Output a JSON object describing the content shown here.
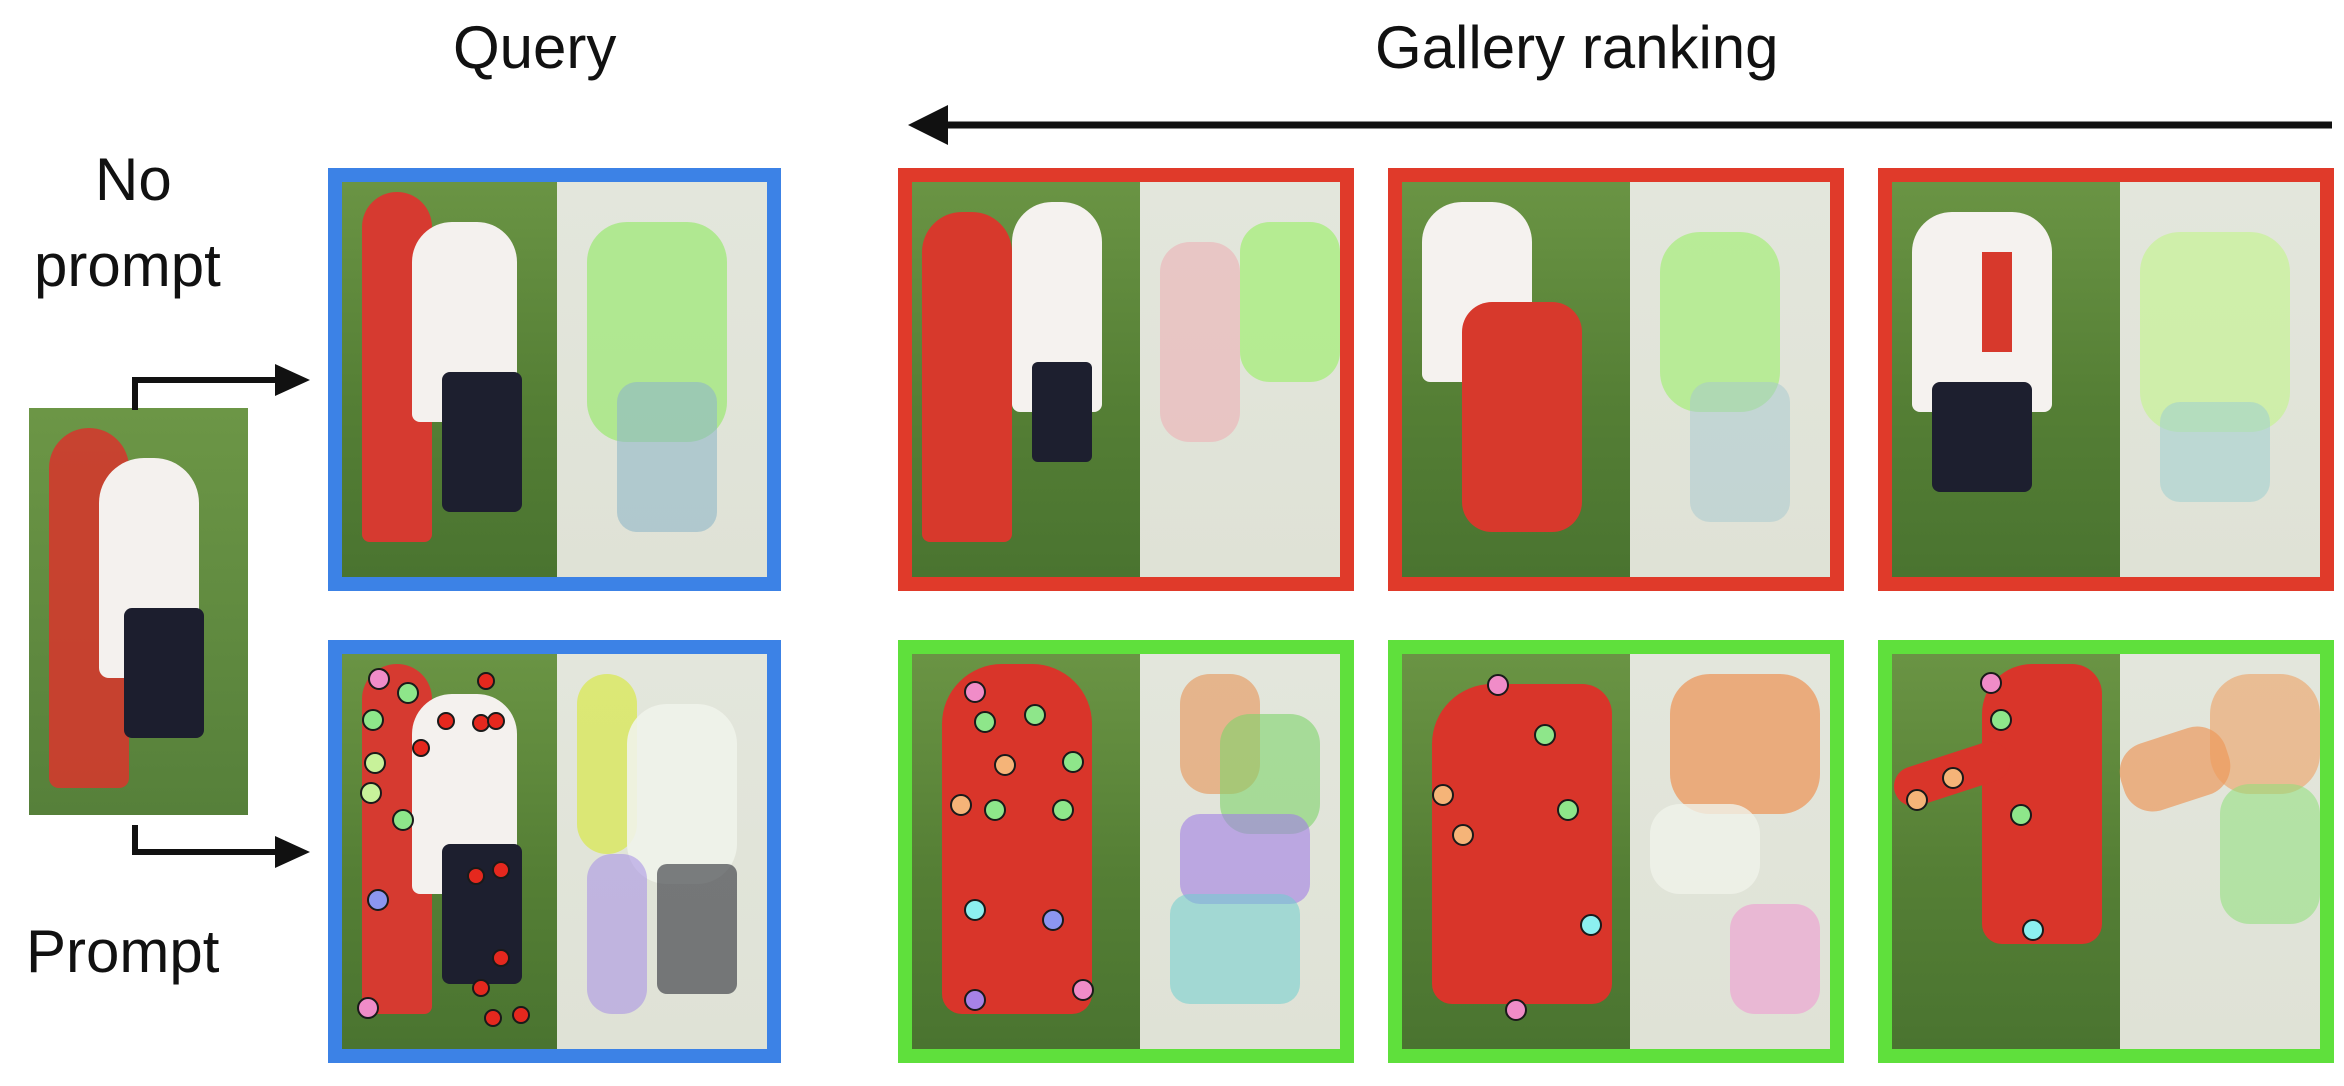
{
  "headings": {
    "query": "Query",
    "gallery": "Gallery ranking"
  },
  "row_labels": {
    "no_prompt_line1": "No",
    "no_prompt_line2": "prompt",
    "prompt": "Prompt"
  },
  "colors": {
    "query_border": "#3c82e6",
    "wrong_match": "#e03a2a",
    "correct_match": "#5fe03c",
    "text": "#111111",
    "keypoint_pink": "#f08cc8",
    "keypoint_green": "#8ee68a",
    "keypoint_red": "#e5281e",
    "keypoint_blue": "#8c96f0",
    "keypoint_orange": "#f5b478",
    "keypoint_cyan": "#8cf0f0",
    "keypoint_purple": "#a682e6"
  }
}
